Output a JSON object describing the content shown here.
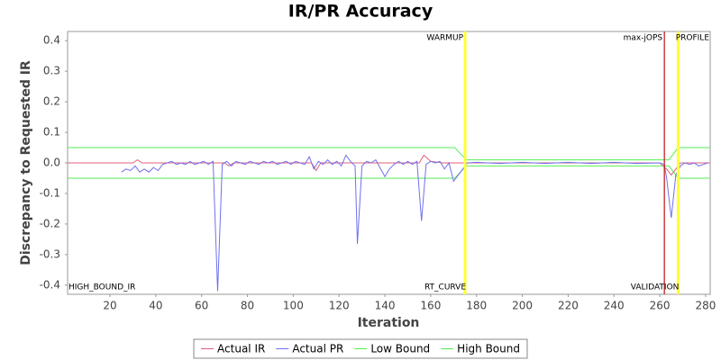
{
  "chart_data": {
    "type": "line",
    "title": "IR/PR Accuracy",
    "x_label": "Iteration",
    "y_label": "Discrepancy to Requested IR",
    "xlim": [
      1.5,
      282
    ],
    "ylim": [
      -0.43,
      0.43
    ],
    "xticks": [
      20,
      40,
      60,
      80,
      100,
      120,
      140,
      160,
      180,
      200,
      220,
      240,
      260,
      280
    ],
    "yticks": [
      0.4,
      0.3,
      0.2,
      0.1,
      {
        "value": 0,
        "label": "0.0"
      },
      -0.1,
      -0.2,
      -0.3,
      -0.4
    ],
    "legend": "bottom",
    "series": [
      {
        "name": "Actual IR",
        "color": "#e0607a",
        "x": [
          1,
          30,
          32,
          34,
          60,
          70,
          72,
          74,
          108,
          110,
          112,
          155,
          157,
          160,
          165,
          260,
          263,
          265,
          267,
          269,
          282
        ],
        "values": [
          0,
          0,
          0.01,
          0,
          0,
          0,
          -0.01,
          0,
          0,
          -0.025,
          0,
          0,
          0.025,
          0.005,
          0,
          0,
          -0.02,
          -0.04,
          -0.02,
          0,
          0
        ]
      },
      {
        "name": "Actual PR",
        "color": "#7070ee",
        "x": [
          25,
          27,
          29,
          31,
          33,
          35,
          37,
          39,
          41,
          43,
          45,
          47,
          49,
          51,
          53,
          55,
          57,
          59,
          61,
          63,
          65,
          67,
          69,
          71,
          73,
          75,
          77,
          79,
          81,
          83,
          85,
          87,
          89,
          91,
          93,
          95,
          97,
          99,
          101,
          103,
          105,
          107,
          109,
          111,
          113,
          115,
          117,
          119,
          121,
          123,
          125,
          127,
          128,
          130,
          132,
          134,
          136,
          140,
          142,
          144,
          146,
          148,
          150,
          152,
          154,
          156,
          158,
          160,
          162,
          164,
          166,
          168,
          170,
          172,
          174,
          176,
          180,
          190,
          200,
          210,
          220,
          230,
          240,
          250,
          260,
          262,
          263,
          265,
          267,
          269,
          271,
          273,
          275,
          277,
          279,
          281
        ],
        "values": [
          -0.03,
          -0.02,
          -0.025,
          -0.01,
          -0.03,
          -0.02,
          -0.03,
          -0.015,
          -0.025,
          -0.005,
          0,
          0.005,
          -0.005,
          0,
          -0.005,
          0.005,
          -0.005,
          0,
          0.005,
          -0.005,
          0.005,
          -0.42,
          -0.005,
          0.005,
          -0.01,
          0.005,
          0,
          -0.005,
          0.005,
          0,
          -0.005,
          0.005,
          0,
          0.005,
          -0.005,
          0,
          0.005,
          -0.005,
          0.005,
          0,
          -0.005,
          0.02,
          -0.02,
          0.005,
          -0.005,
          0.01,
          -0.005,
          0.005,
          -0.01,
          0.025,
          0.005,
          -0.01,
          -0.265,
          -0.01,
          0.005,
          0,
          0.01,
          -0.045,
          -0.02,
          -0.005,
          0.005,
          -0.005,
          0.005,
          -0.005,
          0.005,
          -0.19,
          -0.005,
          0.005,
          0,
          0.005,
          -0.02,
          0,
          -0.06,
          -0.04,
          -0.02,
          0,
          0.002,
          -0.002,
          0.002,
          -0.002,
          0.002,
          -0.002,
          0.002,
          -0.002,
          0,
          -0.005,
          -0.05,
          -0.18,
          -0.04,
          -0.01,
          0,
          -0.005,
          0,
          -0.01,
          -0.005,
          0
        ]
      },
      {
        "name": "Low Bound",
        "color": "#55ee55",
        "x": [
          1.5,
          170.5,
          175.5,
          264,
          268,
          282
        ],
        "values": [
          -0.05,
          -0.05,
          -0.01,
          -0.01,
          -0.05,
          -0.05
        ]
      },
      {
        "name": "High Bound",
        "color": "#55ee55",
        "x": [
          1.5,
          170.5,
          175.5,
          264,
          268,
          282
        ],
        "values": [
          0.05,
          0.05,
          0.01,
          0.01,
          0.05,
          0.05
        ]
      }
    ],
    "markers": [
      {
        "label": "WARMUP",
        "x": 175,
        "color": "#ffff33"
      },
      {
        "label": "max-jOPS",
        "x": 262,
        "color": "#c01010"
      },
      {
        "label": "PROFILE",
        "x": 268,
        "color": "#ffff33"
      }
    ],
    "annotations": [
      {
        "text": "HIGH_BOUND_IR",
        "x": 1.5
      },
      {
        "text": "RT_CURVE",
        "x": 175
      },
      {
        "text": "VALIDATION",
        "x": 268
      }
    ]
  }
}
